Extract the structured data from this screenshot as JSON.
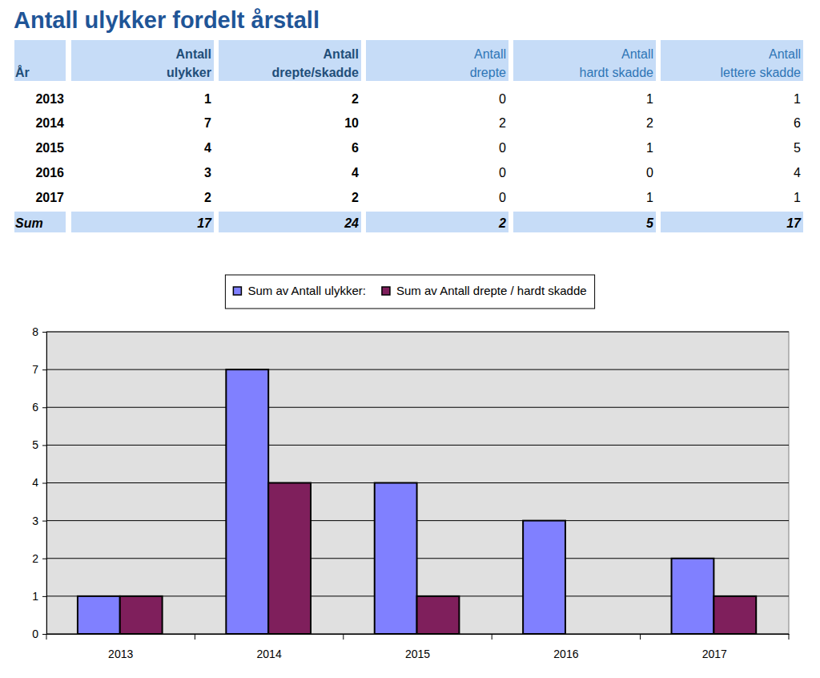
{
  "title": "Antall ulykker fordelt årstall",
  "table": {
    "header": [
      [
        "År"
      ],
      [
        "Antall",
        "ulykker"
      ],
      [
        "Antall",
        "drepte/skadde"
      ],
      [
        "Antall",
        "drepte"
      ],
      [
        "Antall",
        "hardt skadde"
      ],
      [
        "Antall",
        "lettere skadde"
      ]
    ],
    "rows": [
      [
        2013,
        1,
        2,
        0,
        1,
        1
      ],
      [
        2014,
        7,
        10,
        2,
        2,
        6
      ],
      [
        2015,
        4,
        6,
        0,
        1,
        5
      ],
      [
        2016,
        3,
        4,
        0,
        0,
        4
      ],
      [
        2017,
        2,
        2,
        0,
        1,
        1
      ]
    ],
    "sum": [
      "Sum",
      17,
      24,
      2,
      5,
      17
    ]
  },
  "chart_data": {
    "type": "bar",
    "categories": [
      "2013",
      "2014",
      "2015",
      "2016",
      "2017"
    ],
    "series": [
      {
        "name": "Sum av Antall ulykker:",
        "color": "#8080ff",
        "values": [
          1,
          7,
          4,
          3,
          2
        ]
      },
      {
        "name": "Sum av Antall drepte / hardt skadde",
        "color": "#7f1f5c",
        "values": [
          1,
          4,
          1,
          0,
          1
        ]
      }
    ],
    "ylim": [
      0,
      8
    ],
    "yticks": [
      0,
      1,
      2,
      3,
      4,
      5,
      6,
      7,
      8
    ],
    "grid": true,
    "legend": "top"
  }
}
